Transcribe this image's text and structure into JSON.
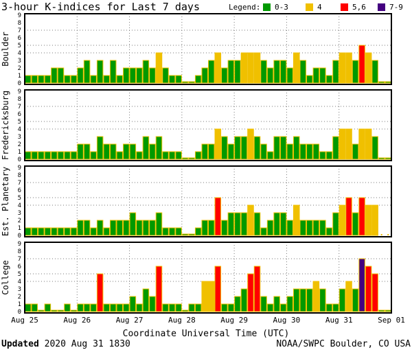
{
  "colors": {
    "quiet": "#009900",
    "active": "#f0c000",
    "storm": "#ff0000",
    "severe": "#440080",
    "edge": "#f0c000"
  },
  "chart_data": {
    "type": "bar",
    "title": "3-hour K-indices for Last 7 days",
    "legend": {
      "label": "Legend:",
      "entries": [
        "0-3",
        "4",
        "5,6",
        "7-9"
      ],
      "placement": "top-right"
    },
    "xlabel": "Coordinate Universal Time (UTC)",
    "x_ticks": [
      "Aug 25",
      "Aug 26",
      "Aug 27",
      "Aug 28",
      "Aug 29",
      "Aug 30",
      "Aug 31",
      "Sep 01"
    ],
    "ylim": [
      0,
      9
    ],
    "y_ticks": [
      "0",
      "1",
      "2",
      "3",
      "4",
      "5",
      "6",
      "7",
      "8",
      "9"
    ],
    "gridlines_y": [
      4,
      5,
      7
    ],
    "bars_per_day": 8,
    "series": [
      {
        "name": "Boulder",
        "values": [
          1,
          1,
          1,
          1,
          2,
          2,
          1,
          1,
          2,
          3,
          1,
          3,
          1,
          3,
          1,
          2,
          2,
          2,
          3,
          2,
          4,
          2,
          1,
          1,
          0,
          0,
          1,
          2,
          3,
          4,
          2,
          3,
          3,
          4,
          4,
          4,
          3,
          2,
          3,
          3,
          2,
          4,
          3,
          1,
          2,
          2,
          1,
          3,
          4,
          4,
          3,
          5,
          4,
          3,
          0,
          0
        ]
      },
      {
        "name": "Fredericksburg",
        "values": [
          1,
          1,
          1,
          1,
          1,
          1,
          1,
          1,
          2,
          2,
          1,
          3,
          2,
          2,
          1,
          2,
          2,
          1,
          3,
          2,
          3,
          1,
          1,
          1,
          0,
          0,
          1,
          2,
          2,
          4,
          3,
          2,
          3,
          3,
          4,
          3,
          2,
          1,
          3,
          3,
          2,
          3,
          2,
          2,
          2,
          1,
          1,
          3,
          4,
          4,
          2,
          4,
          4,
          3,
          0,
          0
        ]
      },
      {
        "name": "Est. Planetary",
        "values": [
          1,
          1,
          1,
          1,
          1,
          1,
          1,
          1,
          2,
          2,
          1,
          2,
          1,
          2,
          2,
          2,
          3,
          2,
          2,
          2,
          3,
          1,
          1,
          1,
          0,
          0,
          1,
          2,
          2,
          5,
          2,
          3,
          3,
          3,
          4,
          3,
          1,
          2,
          3,
          3,
          2,
          4,
          2,
          2,
          2,
          2,
          1,
          3,
          4,
          5,
          3,
          5,
          4,
          4,
          null,
          null
        ]
      },
      {
        "name": "College",
        "values": [
          1,
          1,
          0,
          1,
          0,
          0,
          1,
          0,
          1,
          1,
          1,
          5,
          1,
          1,
          1,
          1,
          2,
          1,
          3,
          2,
          6,
          1,
          1,
          1,
          0,
          1,
          1,
          4,
          4,
          6,
          1,
          1,
          2,
          3,
          5,
          6,
          2,
          1,
          2,
          1,
          2,
          3,
          3,
          3,
          4,
          3,
          1,
          1,
          3,
          4,
          3,
          7,
          6,
          5,
          0,
          0
        ]
      }
    ]
  },
  "footer": {
    "updated_label": "Updated",
    "updated_value": "2020 Aug 31 1830",
    "source": "NOAA/SWPC Boulder, CO USA"
  }
}
